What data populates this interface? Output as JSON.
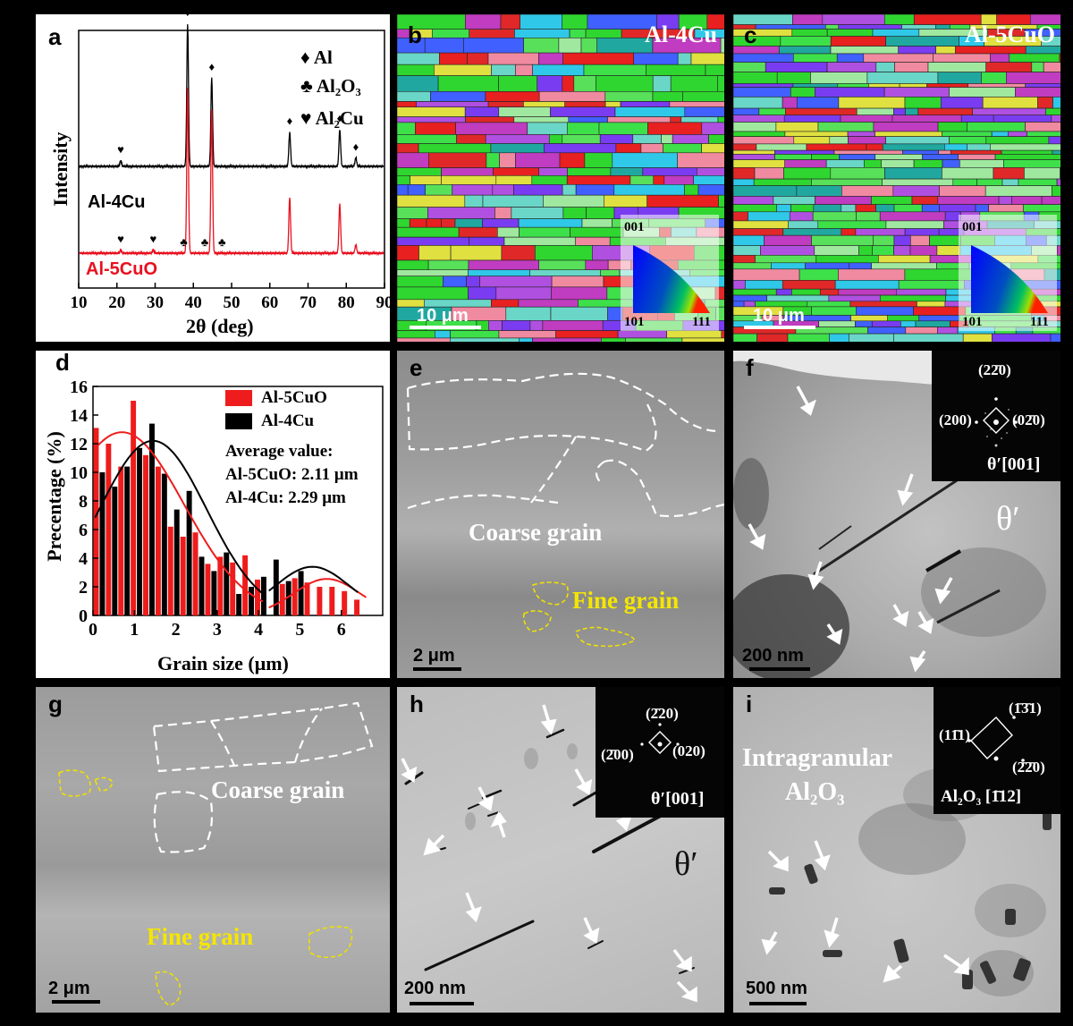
{
  "panels": {
    "a": {
      "label": "a",
      "legend": [
        {
          "symbol": "♦",
          "text": "Al"
        },
        {
          "symbol": "♣",
          "text": "Al₂O₃"
        },
        {
          "symbol": "♥",
          "text": "Al₂Cu"
        }
      ],
      "curve_labels": [
        "Al-4Cu",
        "Al-5CuO"
      ],
      "curve_colors": [
        "#000000",
        "#e8101e"
      ]
    },
    "b": {
      "label": "b",
      "title": "Al-4Cu",
      "scale": "10 μm",
      "ipf": [
        "001",
        "101",
        "111"
      ]
    },
    "c": {
      "label": "c",
      "title": "Al-5CuO",
      "scale": "10 μm",
      "ipf": [
        "001",
        "101",
        "111"
      ]
    },
    "d": {
      "label": "d",
      "legend": [
        "Al-5CuO",
        "Al-4Cu"
      ],
      "colors": [
        "#ee1c1c",
        "#000000"
      ],
      "average_title": "Average value:",
      "average_lines": [
        "Al-5CuO: 2.11 μm",
        "Al-4Cu: 2.29 μm"
      ]
    },
    "e": {
      "label": "e",
      "coarse": "Coarse grain",
      "fine": "Fine grain",
      "scale": "2 μm"
    },
    "f": {
      "label": "f",
      "phase": "θ′",
      "scale": "200 nm",
      "inset": {
        "top": "(22̄0)",
        "left": "(200)",
        "right": "(02̄0)",
        "zone": "θ′[001]"
      }
    },
    "g": {
      "label": "g",
      "coarse": "Coarse grain",
      "fine": "Fine grain",
      "scale": "2 μm"
    },
    "h": {
      "label": "h",
      "phase": "θ′",
      "scale": "200 nm",
      "inset": {
        "top": "(2̄20)",
        "left": "(2̄00)",
        "right": "(020)",
        "zone": "θ′[001]"
      }
    },
    "i": {
      "label": "i",
      "title_line1": "Intragranular",
      "title_line2": "Al₂O₃",
      "scale": "500 nm",
      "inset": {
        "top": "(1̄3̄1)",
        "left": "(11̄1)",
        "right": "(2̄2̄0)",
        "zone": "Al₂O₃ [1̄12]"
      }
    }
  },
  "chart_data": [
    {
      "type": "line",
      "panel": "a",
      "xlabel": "2θ (deg)",
      "ylabel": "Intensity",
      "xlim": [
        10,
        90
      ],
      "xticks": [
        "10",
        "20",
        "30",
        "40",
        "50",
        "60",
        "70",
        "80",
        "90"
      ],
      "series": [
        {
          "name": "Al-4Cu",
          "peaks_x": [
            21.0,
            38.5,
            44.8,
            65.2,
            78.3,
            82.5
          ],
          "peaks_h": [
            0.04,
            1.0,
            0.62,
            0.24,
            0.26,
            0.06
          ]
        },
        {
          "name": "Al-5CuO",
          "peaks_x": [
            21.0,
            29.5,
            38.5,
            44.8,
            65.2,
            78.3,
            82.5
          ],
          "peaks_h": [
            0.02,
            0.02,
            1.0,
            0.86,
            0.34,
            0.3,
            0.05
          ]
        }
      ],
      "markers": [
        {
          "symbol": "♥",
          "x": 21.0,
          "series": "Al-4Cu"
        },
        {
          "symbol": "♦",
          "x": 38.5,
          "series": "Al-4Cu"
        },
        {
          "symbol": "♦",
          "x": 44.8,
          "series": "Al-4Cu"
        },
        {
          "symbol": "♦",
          "x": 65.2,
          "series": "Al-4Cu"
        },
        {
          "symbol": "♦",
          "x": 78.3,
          "series": "Al-4Cu"
        },
        {
          "symbol": "♦",
          "x": 82.5,
          "series": "Al-4Cu"
        },
        {
          "symbol": "♥",
          "x": 21.0,
          "series": "Al-5CuO"
        },
        {
          "symbol": "♥",
          "x": 29.5,
          "series": "Al-5CuO"
        },
        {
          "symbol": "♣",
          "x": 37.5,
          "series": "Al-5CuO"
        },
        {
          "symbol": "♣",
          "x": 43.0,
          "series": "Al-5CuO"
        },
        {
          "symbol": "♣",
          "x": 47.5,
          "series": "Al-5CuO"
        }
      ]
    },
    {
      "type": "bar",
      "panel": "d",
      "xlabel": "Grain size (μm)",
      "ylabel": "Precentage (%)",
      "xlim": [
        0,
        7
      ],
      "ylim": [
        0,
        16
      ],
      "xticks": [
        0,
        1,
        2,
        3,
        4,
        5,
        6
      ],
      "yticks": [
        0,
        2,
        4,
        6,
        8,
        10,
        12,
        14,
        16
      ],
      "categories": [
        0.15,
        0.45,
        0.75,
        1.05,
        1.35,
        1.65,
        1.95,
        2.25,
        2.55,
        2.85,
        3.15,
        3.45,
        3.75,
        4.05,
        4.35,
        4.65,
        4.95,
        5.25,
        5.55,
        5.85,
        6.15,
        6.45
      ],
      "series": [
        {
          "name": "Al-5CuO",
          "values": [
            13.1,
            12.0,
            10.4,
            15.0,
            11.2,
            10.4,
            6.2,
            5.5,
            5.8,
            3.6,
            4.1,
            3.7,
            4.2,
            2.5,
            0,
            2.2,
            2.6,
            2.3,
            2.0,
            2.0,
            1.7,
            1.1
          ]
        },
        {
          "name": "Al-4Cu",
          "values": [
            10.0,
            9.0,
            10.4,
            11.7,
            13.4,
            9.9,
            7.4,
            8.7,
            4.1,
            3.1,
            4.4,
            1.5,
            2.0,
            2.7,
            3.9,
            2.4,
            3.1,
            0,
            0,
            0,
            0,
            0
          ]
        }
      ]
    }
  ]
}
